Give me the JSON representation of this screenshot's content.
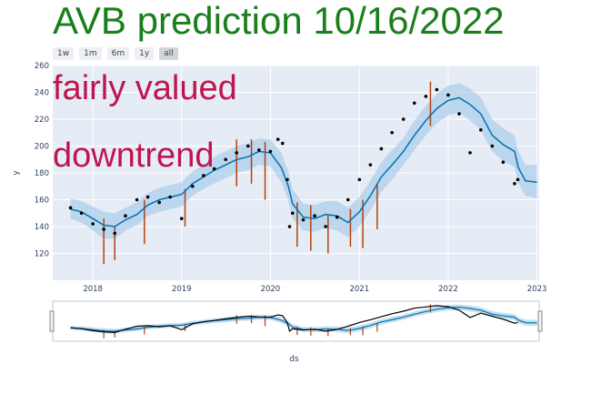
{
  "title": "AVB prediction 10/16/2022",
  "range_buttons": [
    "1w",
    "1m",
    "6m",
    "1y",
    "all"
  ],
  "active_range": "all",
  "annotations": [
    "fairly valued",
    "downtrend"
  ],
  "colors": {
    "title": "#1a7f1a",
    "annotation": "#c0144e",
    "plot_bg": "#e5ecf6",
    "forecast_line": "#0072b2",
    "uncertainty_band": "#9ec8e8",
    "actual_points": "#000000",
    "changepoints": "#b5410b"
  },
  "chart_data": {
    "type": "line",
    "xlabel": "ds",
    "ylabel": "y",
    "ylim": [
      100,
      260
    ],
    "xlim": [
      "2017-07-20",
      "2023-01-10"
    ],
    "y_ticks": [
      120,
      140,
      160,
      180,
      200,
      220,
      240,
      260
    ],
    "x_ticks": [
      "2018",
      "2019",
      "2020",
      "2021",
      "2022",
      "2023"
    ],
    "x_tick_dates": [
      "2018-01-01",
      "2019-01-01",
      "2020-01-01",
      "2021-01-01",
      "2022-01-01",
      "2023-01-01"
    ],
    "grid": true,
    "range_slider": true,
    "series": [
      {
        "kind": "forecast",
        "x": [
          "2017-10-01",
          "2017-11-15",
          "2018-01-01",
          "2018-02-15",
          "2018-04-01",
          "2018-05-15",
          "2018-07-01",
          "2018-08-15",
          "2018-10-01",
          "2018-11-15",
          "2019-01-01",
          "2019-02-15",
          "2019-04-01",
          "2019-05-15",
          "2019-07-01",
          "2019-08-15",
          "2019-10-01",
          "2019-11-15",
          "2020-01-01",
          "2020-02-15",
          "2020-03-15",
          "2020-04-01",
          "2020-05-15",
          "2020-07-01",
          "2020-08-15",
          "2020-10-01",
          "2020-11-15",
          "2021-01-01",
          "2021-02-15",
          "2021-04-01",
          "2021-05-15",
          "2021-07-01",
          "2021-08-15",
          "2021-10-01",
          "2021-11-15",
          "2022-01-01",
          "2022-02-15",
          "2022-04-01",
          "2022-05-15",
          "2022-07-01",
          "2022-08-15",
          "2022-10-01",
          "2022-10-16",
          "2022-11-15",
          "2023-01-01"
        ],
        "yhat": [
          153,
          151,
          146,
          141,
          140,
          145,
          149,
          156,
          160,
          162,
          164,
          172,
          177,
          182,
          186,
          190,
          192,
          196,
          195,
          184,
          170,
          157,
          147,
          146,
          149,
          148,
          143,
          151,
          163,
          177,
          186,
          196,
          208,
          219,
          228,
          234,
          236,
          231,
          224,
          208,
          201,
          196,
          184,
          174,
          173
        ],
        "yhat_lower": [
          146,
          143,
          137,
          131,
          131,
          137,
          141,
          148,
          151,
          153,
          155,
          163,
          168,
          172,
          176,
          180,
          182,
          186,
          185,
          173,
          159,
          146,
          137,
          136,
          139,
          137,
          132,
          140,
          152,
          166,
          175,
          186,
          197,
          208,
          217,
          223,
          225,
          219,
          212,
          196,
          189,
          184,
          172,
          163,
          161
        ],
        "yhat_upper": [
          161,
          159,
          155,
          151,
          150,
          154,
          158,
          165,
          169,
          171,
          173,
          181,
          186,
          192,
          196,
          200,
          202,
          206,
          205,
          195,
          181,
          168,
          157,
          156,
          159,
          159,
          154,
          162,
          174,
          188,
          197,
          206,
          219,
          230,
          239,
          245,
          247,
          243,
          236,
          220,
          213,
          208,
          196,
          186,
          186
        ]
      },
      {
        "kind": "actual",
        "x": [
          "2017-10-01",
          "2017-11-15",
          "2018-01-01",
          "2018-02-15",
          "2018-04-01",
          "2018-05-15",
          "2018-07-01",
          "2018-08-15",
          "2018-10-01",
          "2018-11-15",
          "2019-01-01",
          "2019-02-15",
          "2019-04-01",
          "2019-05-15",
          "2019-07-01",
          "2019-08-15",
          "2019-10-01",
          "2019-11-15",
          "2020-01-01",
          "2020-02-01",
          "2020-02-20",
          "2020-03-10",
          "2020-03-20",
          "2020-04-01",
          "2020-05-15",
          "2020-07-01",
          "2020-08-15",
          "2020-10-01",
          "2020-11-15",
          "2021-01-01",
          "2021-02-15",
          "2021-04-01",
          "2021-05-15",
          "2021-07-01",
          "2021-08-15",
          "2021-10-01",
          "2021-11-15",
          "2022-01-01",
          "2022-02-15",
          "2022-04-01",
          "2022-05-15",
          "2022-07-01",
          "2022-08-15",
          "2022-10-01",
          "2022-10-14"
        ],
        "y": [
          154,
          150,
          142,
          138,
          135,
          148,
          160,
          162,
          158,
          162,
          146,
          170,
          178,
          183,
          190,
          195,
          200,
          197,
          196,
          205,
          202,
          175,
          140,
          150,
          145,
          148,
          140,
          147,
          160,
          175,
          186,
          198,
          210,
          220,
          232,
          237,
          242,
          238,
          224,
          195,
          212,
          200,
          188,
          172,
          175
        ]
      }
    ],
    "changepoints": [
      {
        "date": "2018-02-15",
        "low": 112,
        "high": 146
      },
      {
        "date": "2018-04-01",
        "low": 115,
        "high": 140
      },
      {
        "date": "2018-08-01",
        "low": 127,
        "high": 160
      },
      {
        "date": "2019-01-15",
        "low": 140,
        "high": 168
      },
      {
        "date": "2019-08-15",
        "low": 170,
        "high": 205
      },
      {
        "date": "2019-10-15",
        "low": 172,
        "high": 205
      },
      {
        "date": "2019-12-10",
        "low": 160,
        "high": 203
      },
      {
        "date": "2020-04-20",
        "low": 125,
        "high": 158
      },
      {
        "date": "2020-06-15",
        "low": 122,
        "high": 156
      },
      {
        "date": "2020-08-25",
        "low": 120,
        "high": 148
      },
      {
        "date": "2020-11-25",
        "low": 125,
        "high": 153
      },
      {
        "date": "2021-01-15",
        "low": 124,
        "high": 160
      },
      {
        "date": "2021-03-15",
        "low": 138,
        "high": 172
      },
      {
        "date": "2021-10-20",
        "low": 215,
        "high": 248
      }
    ]
  }
}
